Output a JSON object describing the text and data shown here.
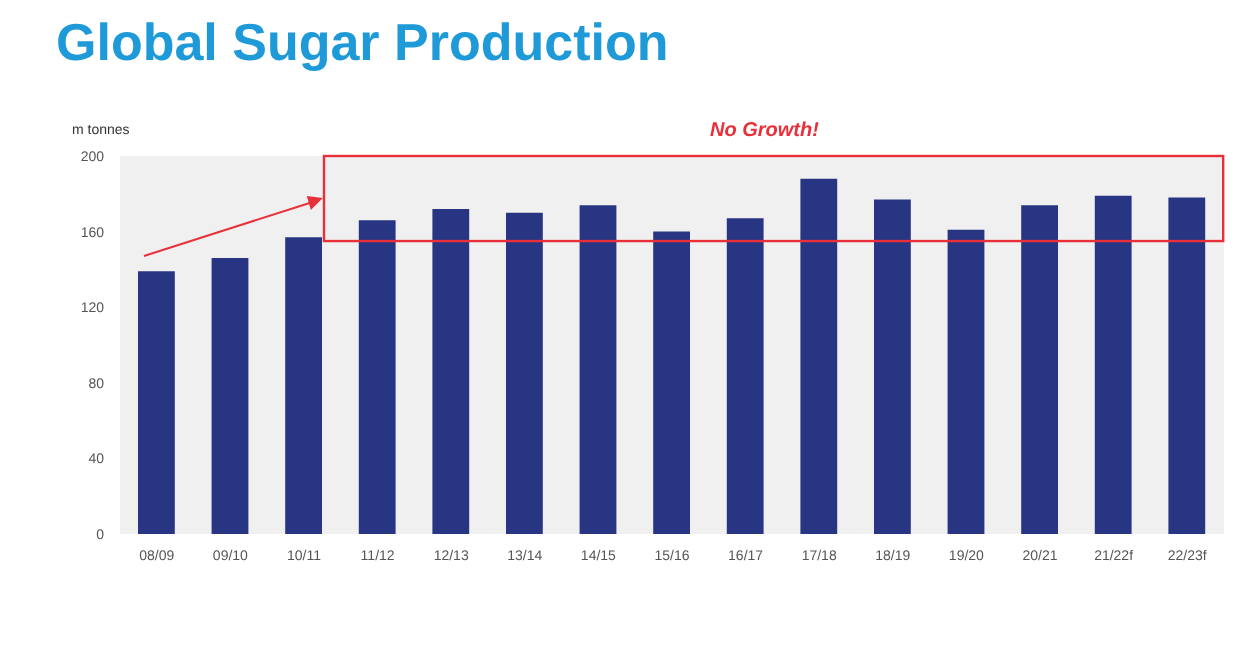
{
  "chart_data": {
    "type": "bar",
    "title": "Global Sugar Production",
    "ylabel": "m tonnes",
    "categories": [
      "08/09",
      "09/10",
      "10/11",
      "11/12",
      "12/13",
      "13/14",
      "14/15",
      "15/16",
      "16/17",
      "17/18",
      "18/19",
      "19/20",
      "20/21",
      "21/22f",
      "22/23f"
    ],
    "values": [
      139,
      146,
      157,
      166,
      172,
      170,
      174,
      160,
      167,
      188,
      177,
      161,
      174,
      179,
      178
    ],
    "color": "#283583",
    "ylim": [
      0,
      200
    ],
    "yticks": [
      0,
      40,
      80,
      120,
      160,
      200
    ],
    "annotations": [
      "No Growth!"
    ]
  }
}
